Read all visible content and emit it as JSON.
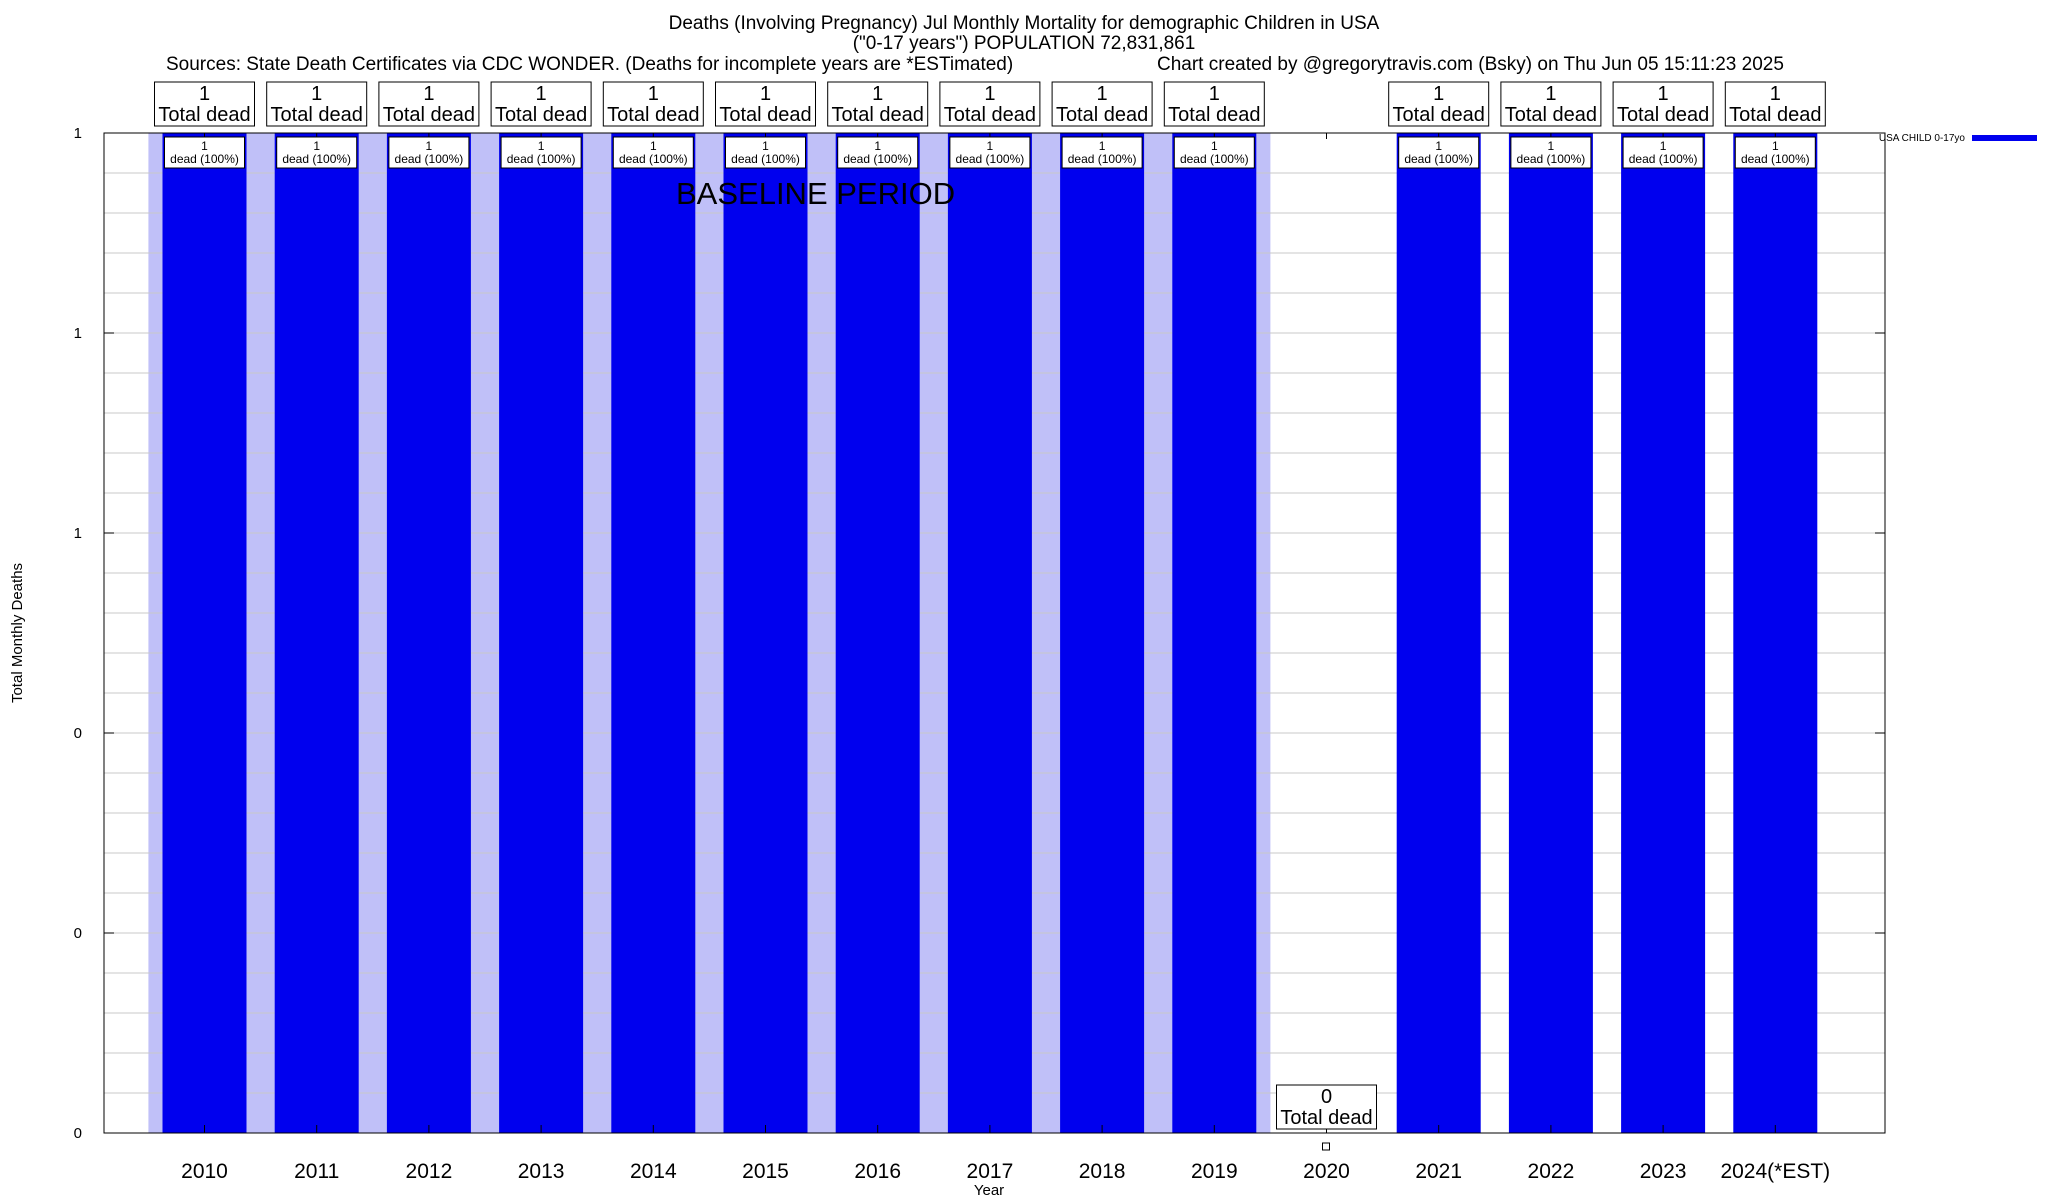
{
  "header": {
    "title_line1": "Deaths (Involving Pregnancy) Jul Monthly Mortality for demographic Children in USA",
    "title_line2": "(\"0-17 years\") POPULATION 72,831,861",
    "sources": "Sources: State Death Certificates via CDC WONDER. (Deaths for incomplete years are *ESTimated)",
    "credit": "Chart created by @gregorytravis.com (Bsky) on Thu Jun 05 15:11:23 2025"
  },
  "chart_data": {
    "type": "bar",
    "categories": [
      "2010",
      "2011",
      "2012",
      "2013",
      "2014",
      "2015",
      "2016",
      "2017",
      "2018",
      "2019",
      "2020",
      "2021",
      "2022",
      "2023",
      "2024(*EST)"
    ],
    "series": [
      {
        "name": "USA CHILD 0-17yo",
        "values": [
          1,
          1,
          1,
          1,
          1,
          1,
          1,
          1,
          1,
          1,
          0,
          1,
          1,
          1,
          1
        ],
        "color": "#0000ee"
      }
    ],
    "baseline_color": "#c0c0f8",
    "baseline_categories": [
      "2010",
      "2011",
      "2012",
      "2013",
      "2014",
      "2015",
      "2016",
      "2017",
      "2018",
      "2019"
    ],
    "baseline_label": "BASELINE PERIOD",
    "top_label_suffix": "Total dead",
    "inner_label_suffix": "dead (100%)",
    "xlabel": "Year",
    "ylabel": "Total Monthly Deaths",
    "ylim": [
      0,
      1
    ],
    "y_tick_values": [
      0,
      0.2,
      0.4,
      0.6,
      0.8,
      1
    ],
    "y_tick_labels": [
      "0",
      "0",
      "0",
      "1",
      "1",
      "1"
    ],
    "grid": true,
    "legend_position": "top-right"
  }
}
